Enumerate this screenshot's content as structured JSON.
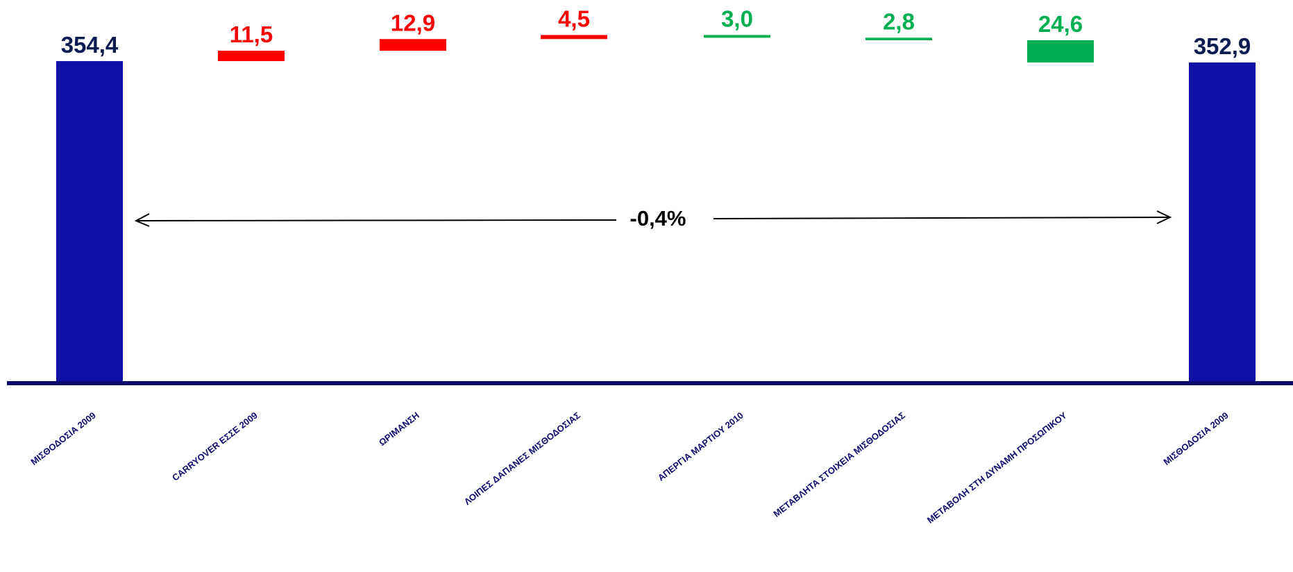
{
  "chart_data": {
    "type": "bar",
    "subtype": "waterfall",
    "categories": [
      "ΜΙΣΘΟΔΟΣΙΑ 2009",
      "CARRYOVER ΕΣΣΕ 2009",
      "ΩΡΙΜΑΝΣΗ",
      "ΛΟΙΠΕΣ ΔΑΠΑΝΕΣ ΜΙΣΘΟΔΟΣΙΑΣ",
      "ΑΠΕΡΓΙΑ ΜΑΡΤΙΟΥ  2010",
      "ΜΕΤΑΒΛΗΤΑ ΣΤΟΙΧΕΙΑ  ΜΙΣΘΟΔΟΣΙΑΣ",
      "ΜΕΤΑΒΟΛΗ ΣΤΗ ΔΥΝΑΜΗ ΠΡΟΣΩΠΙΚΟΥ",
      "ΜΙΣΘΟΔΟΣΙΑ 2009"
    ],
    "values": [
      354.4,
      11.5,
      12.9,
      4.5,
      -3.0,
      -2.8,
      -24.6,
      352.9
    ],
    "value_labels": [
      "354,4",
      "11,5",
      "12,9",
      "4,5",
      "3,0",
      "2,8",
      "24,6",
      "352,9"
    ],
    "kinds": [
      "total",
      "increase",
      "increase",
      "increase",
      "decrease",
      "decrease",
      "decrease",
      "total"
    ],
    "annotation": "-0,4%",
    "colors": {
      "total": "#1010a6",
      "increase": "#ff0000",
      "decrease": "#00b050",
      "total_label": "#0c1c52",
      "axis": "#0c0c6e",
      "category_label": "#0c0c6e",
      "annotation": "#000000"
    },
    "xlabel": "",
    "ylabel": "",
    "grid": false,
    "legend": "none"
  }
}
